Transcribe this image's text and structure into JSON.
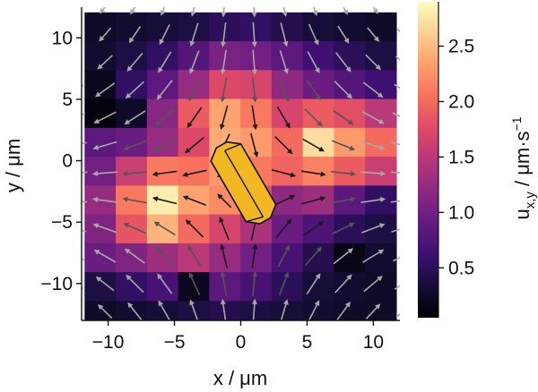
{
  "chart_data": {
    "type": "heatmap",
    "subtype": "vector-field-overlay",
    "xlabel": "x / μm",
    "ylabel": "y / μm",
    "colorbar": {
      "label_base": "u",
      "label_sub": "x,y",
      "label_rest": " / μm·s",
      "label_sup": "−1",
      "ticks": [
        0.5,
        1.0,
        1.5,
        2.0,
        2.5
      ],
      "tick_labels": [
        "0.5",
        "1.0",
        "1.5",
        "2.0",
        "2.5"
      ],
      "range": [
        0.05,
        2.9
      ],
      "colormap": "magma"
    },
    "xlim": [
      -12,
      12
    ],
    "ylim": [
      -13,
      12.5
    ],
    "x_ticks": [
      -10,
      -5,
      0,
      5,
      10
    ],
    "x_tick_labels": [
      "−10",
      "−5",
      "0",
      "5",
      "10"
    ],
    "y_ticks": [
      -10,
      -5,
      0,
      5,
      10
    ],
    "y_tick_labels": [
      "−10",
      "−5",
      "0",
      "5",
      "10"
    ],
    "cell_size_um": 2.35,
    "x_centers": [
      -10.6,
      -8.25,
      -5.9,
      -3.55,
      -1.2,
      1.15,
      3.5,
      5.85,
      8.2,
      10.55
    ],
    "y_centers": [
      10.9,
      8.55,
      6.2,
      3.85,
      1.5,
      -0.85,
      -3.2,
      -5.55,
      -7.9,
      -10.25,
      -12.6
    ],
    "values": [
      [
        0.25,
        0.3,
        0.35,
        0.4,
        0.5,
        0.55,
        0.45,
        0.35,
        0.3,
        0.25
      ],
      [
        0.3,
        0.4,
        0.55,
        0.8,
        1.05,
        1.0,
        0.85,
        0.65,
        0.5,
        0.4
      ],
      [
        0.2,
        0.55,
        0.85,
        1.25,
        1.75,
        1.7,
        1.2,
        0.95,
        0.8,
        0.65
      ],
      [
        0.1,
        0.25,
        1.15,
        1.9,
        2.35,
        2.1,
        1.7,
        1.9,
        1.8,
        1.5
      ],
      [
        0.85,
        0.95,
        1.25,
        1.75,
        2.4,
        2.3,
        2.0,
        2.7,
        2.3,
        2.0
      ],
      [
        1.0,
        1.6,
        2.1,
        2.05,
        2.3,
        2.1,
        1.95,
        2.15,
        1.9,
        1.6
      ],
      [
        1.25,
        2.1,
        2.8,
        2.35,
        2.2,
        1.8,
        1.2,
        1.3,
        0.85,
        0.55
      ],
      [
        1.1,
        1.85,
        2.45,
        2.0,
        1.7,
        1.4,
        0.95,
        0.75,
        0.5,
        0.4
      ],
      [
        0.95,
        1.1,
        1.3,
        1.5,
        1.25,
        1.0,
        0.7,
        0.45,
        0.15,
        0.3
      ],
      [
        0.4,
        0.55,
        0.7,
        0.2,
        0.85,
        0.7,
        0.5,
        0.35,
        0.3,
        0.25
      ],
      [
        0.25,
        0.3,
        0.35,
        0.4,
        0.45,
        0.4,
        0.35,
        0.3,
        0.25,
        0.25
      ]
    ],
    "vector_grid_x": [
      -12.5,
      -10.25,
      -8.0,
      -5.75,
      -3.5,
      -1.25,
      1.0,
      3.25,
      5.5,
      7.75,
      10.0,
      12.25
    ],
    "vector_grid_y": [
      12.5,
      10.25,
      8.0,
      5.75,
      3.5,
      1.25,
      -1.0,
      -3.25,
      -5.5,
      -7.75,
      -10.0,
      -12.25
    ],
    "crystal": {
      "color": "#f2b824",
      "center": [
        0.2,
        -1.8
      ],
      "length_um": 6.6,
      "width_um": 2.6,
      "angle_deg": -60
    }
  }
}
